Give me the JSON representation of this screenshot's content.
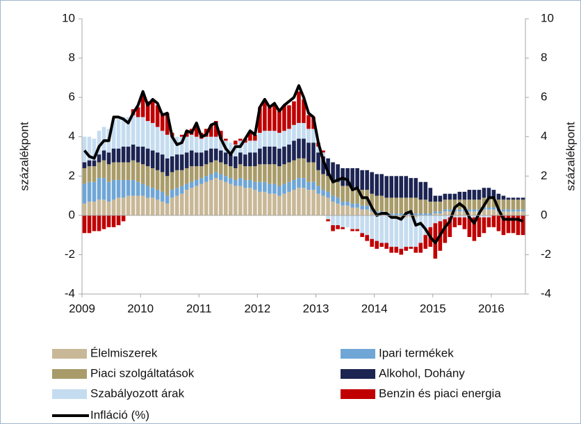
{
  "chart_data": {
    "type": "bar",
    "stacked": true,
    "ylabel": "százalékpont",
    "y2label": "százalékpont",
    "ylim": [
      -4,
      10
    ],
    "yticks": [
      -4,
      -2,
      0,
      2,
      4,
      6,
      8,
      10
    ],
    "y2lim": [
      -4,
      10
    ],
    "y2ticks": [
      -4,
      -2,
      0,
      2,
      4,
      6,
      8,
      10
    ],
    "categories": [
      "2009",
      null,
      null,
      null,
      null,
      null,
      null,
      null,
      null,
      null,
      null,
      null,
      "2010",
      null,
      null,
      null,
      null,
      null,
      null,
      null,
      null,
      null,
      null,
      null,
      "2011",
      null,
      null,
      null,
      null,
      null,
      null,
      null,
      null,
      null,
      null,
      null,
      "2012",
      null,
      null,
      null,
      null,
      null,
      null,
      null,
      null,
      null,
      null,
      null,
      "2013",
      null,
      null,
      null,
      null,
      null,
      null,
      null,
      null,
      null,
      null,
      null,
      "2014",
      null,
      null,
      null,
      null,
      null,
      null,
      null,
      null,
      null,
      null,
      null,
      "2015",
      null,
      null,
      null,
      null,
      null,
      null,
      null,
      null,
      null,
      null,
      null,
      "2016",
      null,
      null,
      null,
      null,
      null,
      null
    ],
    "series": [
      {
        "name": "Élelmiszerek",
        "color": "#c8b897",
        "values": [
          0.6,
          0.7,
          0.7,
          0.8,
          0.8,
          0.7,
          0.8,
          0.9,
          0.9,
          1.0,
          1.0,
          1.0,
          1.0,
          0.9,
          0.9,
          0.8,
          0.7,
          0.6,
          0.9,
          1.0,
          1.1,
          1.3,
          1.4,
          1.5,
          1.6,
          1.7,
          1.8,
          1.9,
          1.8,
          1.7,
          1.6,
          1.5,
          1.5,
          1.4,
          1.4,
          1.3,
          1.2,
          1.2,
          1.1,
          1.1,
          1.0,
          1.1,
          1.2,
          1.3,
          1.4,
          1.4,
          1.3,
          1.3,
          1.1,
          1.0,
          0.9,
          0.7,
          0.6,
          0.5,
          0.5,
          0.4,
          0.4,
          0.3,
          0.3,
          0.2,
          0.1,
          0.1,
          0.0,
          -0.1,
          -0.1,
          -0.2,
          -0.1,
          -0.1,
          -0.1,
          0.0,
          0.0,
          0.0,
          0.1,
          0.1,
          0.2,
          0.2,
          0.2,
          0.2,
          0.2,
          0.2,
          0.2,
          0.2,
          0.3,
          0.3,
          0.3,
          0.2,
          0.2,
          0.2,
          0.2,
          0.2,
          0.2
        ]
      },
      {
        "name": "Ipari termékek",
        "color": "#6fa6d6",
        "values": [
          1.0,
          1.0,
          1.0,
          1.1,
          1.1,
          1.0,
          1.0,
          0.9,
          0.9,
          0.8,
          0.8,
          0.7,
          0.6,
          0.6,
          0.5,
          0.5,
          0.5,
          0.4,
          0.4,
          0.4,
          0.4,
          0.3,
          0.3,
          0.3,
          0.3,
          0.3,
          0.3,
          0.3,
          0.3,
          0.3,
          0.3,
          0.3,
          0.4,
          0.4,
          0.4,
          0.4,
          0.5,
          0.5,
          0.5,
          0.5,
          0.5,
          0.5,
          0.5,
          0.5,
          0.5,
          0.5,
          0.4,
          0.4,
          0.4,
          0.3,
          0.3,
          0.3,
          0.3,
          0.2,
          0.2,
          0.2,
          0.2,
          0.2,
          0.2,
          0.1,
          0.1,
          0.1,
          0.1,
          0.1,
          0.1,
          0.1,
          0.1,
          0.1,
          0.1,
          0.1,
          0.1,
          0.1,
          0.1,
          0.1,
          0.1,
          0.1,
          0.1,
          0.1,
          0.1,
          0.1,
          0.1,
          0.1,
          0.1,
          0.1,
          0.1,
          0.1,
          0.1,
          0.1,
          0.1,
          0.1,
          0.1
        ]
      },
      {
        "name": "Piaci szolgáltatások",
        "color": "#a99c6a",
        "values": [
          0.8,
          0.8,
          0.8,
          0.8,
          0.9,
          0.9,
          0.9,
          0.9,
          0.9,
          0.9,
          1.0,
          1.0,
          1.0,
          1.0,
          1.0,
          1.0,
          1.0,
          1.0,
          0.9,
          0.9,
          0.8,
          0.8,
          0.8,
          0.7,
          0.6,
          0.6,
          0.6,
          0.6,
          0.6,
          0.6,
          0.6,
          0.6,
          0.7,
          0.7,
          0.7,
          0.8,
          0.9,
          0.9,
          1.0,
          1.0,
          1.0,
          1.0,
          1.0,
          1.0,
          1.0,
          1.0,
          1.0,
          1.0,
          0.8,
          0.8,
          0.8,
          0.8,
          0.8,
          0.8,
          0.8,
          0.8,
          0.8,
          0.8,
          0.8,
          0.8,
          0.8,
          0.8,
          0.8,
          0.8,
          0.8,
          0.8,
          0.8,
          0.8,
          0.8,
          0.7,
          0.7,
          0.6,
          0.5,
          0.5,
          0.5,
          0.5,
          0.5,
          0.5,
          0.5,
          0.5,
          0.5,
          0.5,
          0.5,
          0.5,
          0.5,
          0.5,
          0.5,
          0.5,
          0.5,
          0.5,
          0.5
        ]
      },
      {
        "name": "Alkohol, Dohány",
        "color": "#1c2452",
        "values": [
          0.3,
          0.3,
          0.3,
          0.4,
          0.5,
          0.6,
          0.7,
          0.7,
          0.8,
          0.8,
          0.8,
          0.8,
          0.9,
          0.9,
          0.9,
          0.9,
          0.9,
          0.9,
          0.8,
          0.8,
          0.8,
          0.8,
          0.8,
          0.7,
          0.7,
          0.7,
          0.7,
          0.6,
          0.6,
          0.6,
          0.6,
          0.6,
          0.6,
          0.6,
          0.7,
          0.7,
          0.8,
          0.9,
          0.9,
          0.9,
          0.9,
          0.9,
          0.9,
          1.0,
          1.0,
          1.0,
          1.0,
          1.0,
          0.9,
          0.9,
          0.9,
          0.9,
          0.9,
          0.9,
          0.9,
          1.0,
          1.0,
          1.0,
          1.0,
          1.1,
          1.1,
          1.1,
          1.1,
          1.1,
          1.1,
          1.1,
          1.1,
          1.0,
          1.0,
          0.9,
          0.9,
          0.7,
          0.3,
          0.3,
          0.3,
          0.3,
          0.3,
          0.4,
          0.4,
          0.5,
          0.5,
          0.5,
          0.5,
          0.5,
          0.4,
          0.3,
          0.2,
          0.1,
          0.1,
          0.1,
          0.1
        ]
      },
      {
        "name": "Szabályozott árak",
        "color": "#c5dcf0",
        "values": [
          1.3,
          1.2,
          1.1,
          1.2,
          1.2,
          1.2,
          1.5,
          1.5,
          1.5,
          1.5,
          1.5,
          1.5,
          1.5,
          1.4,
          1.4,
          1.3,
          1.2,
          1.2,
          1.0,
          0.9,
          0.9,
          0.8,
          0.8,
          0.8,
          0.7,
          0.7,
          0.6,
          0.6,
          0.6,
          0.6,
          0.6,
          0.6,
          0.6,
          0.6,
          0.6,
          0.6,
          0.8,
          0.8,
          0.8,
          0.8,
          0.8,
          0.8,
          0.8,
          0.8,
          0.8,
          0.8,
          0.7,
          0.7,
          0.3,
          0.2,
          -0.2,
          -0.5,
          -0.5,
          -0.6,
          -0.6,
          -0.7,
          -0.7,
          -0.9,
          -1.0,
          -1.2,
          -1.3,
          -1.4,
          -1.4,
          -1.5,
          -1.5,
          -1.5,
          -1.5,
          -1.5,
          -1.5,
          -1.4,
          -1.0,
          -0.6,
          -0.4,
          -0.3,
          -0.2,
          -0.1,
          -0.1,
          -0.1,
          -0.1,
          -0.1,
          -0.1,
          -0.1,
          -0.1,
          -0.1,
          0.0,
          0.0,
          0.0,
          0.0,
          0.0,
          0.0,
          0.0
        ]
      },
      {
        "name": "Benzin és piaci energia",
        "color": "#c00000",
        "values": [
          -0.9,
          -0.9,
          -0.8,
          -0.8,
          -0.7,
          -0.6,
          -0.6,
          -0.5,
          -0.3,
          0.0,
          0.3,
          0.5,
          1.2,
          1.0,
          1.2,
          1.1,
          0.9,
          1.1,
          0.2,
          0.0,
          0.1,
          0.3,
          0.3,
          0.6,
          0.3,
          0.4,
          0.6,
          0.8,
          0.4,
          0.1,
          0.0,
          0.2,
          0.1,
          0.2,
          0.4,
          0.3,
          1.3,
          1.5,
          1.2,
          1.3,
          1.1,
          1.3,
          1.2,
          1.2,
          1.6,
          1.2,
          0.7,
          0.6,
          0.2,
          0.1,
          -0.1,
          -0.3,
          -0.2,
          -0.1,
          0.0,
          -0.1,
          -0.1,
          -0.2,
          -0.3,
          -0.4,
          -0.4,
          -0.2,
          -0.3,
          -0.3,
          -0.3,
          -0.3,
          -0.2,
          -0.1,
          -0.3,
          -0.5,
          -0.7,
          -1.0,
          -1.8,
          -1.5,
          -1.2,
          -1.0,
          -0.5,
          -0.4,
          -0.6,
          -1.0,
          -1.2,
          -1.0,
          -0.8,
          -0.5,
          -0.6,
          -0.8,
          -1.0,
          -0.9,
          -0.9,
          -1.0,
          -1.0
        ]
      },
      {
        "name": "Infláció (%)",
        "color": "#000000",
        "type": "line",
        "values": [
          3.3,
          3.0,
          2.9,
          3.5,
          3.8,
          3.8,
          5.0,
          5.0,
          4.9,
          4.7,
          5.2,
          5.6,
          6.3,
          5.6,
          5.9,
          5.7,
          5.1,
          5.2,
          4.0,
          3.6,
          3.7,
          4.3,
          4.2,
          4.7,
          4.0,
          4.1,
          4.6,
          4.7,
          3.9,
          3.4,
          3.1,
          3.5,
          3.5,
          3.9,
          4.3,
          4.1,
          5.5,
          5.9,
          5.5,
          5.7,
          5.3,
          5.6,
          5.8,
          6.0,
          6.6,
          6.0,
          5.2,
          5.0,
          3.7,
          2.8,
          2.2,
          1.7,
          1.8,
          1.9,
          1.8,
          1.3,
          1.4,
          0.9,
          0.9,
          0.4,
          0.0,
          0.1,
          0.1,
          -0.1,
          -0.1,
          -0.2,
          0.1,
          0.2,
          -0.5,
          -0.4,
          -0.7,
          -1.1,
          -1.4,
          -1.0,
          -0.6,
          -0.3,
          0.4,
          0.6,
          0.4,
          -0.1,
          -0.4,
          0.1,
          0.5,
          0.9,
          0.9,
          0.3,
          -0.2,
          -0.2,
          -0.2,
          -0.2,
          -0.3
        ]
      }
    ]
  }
}
